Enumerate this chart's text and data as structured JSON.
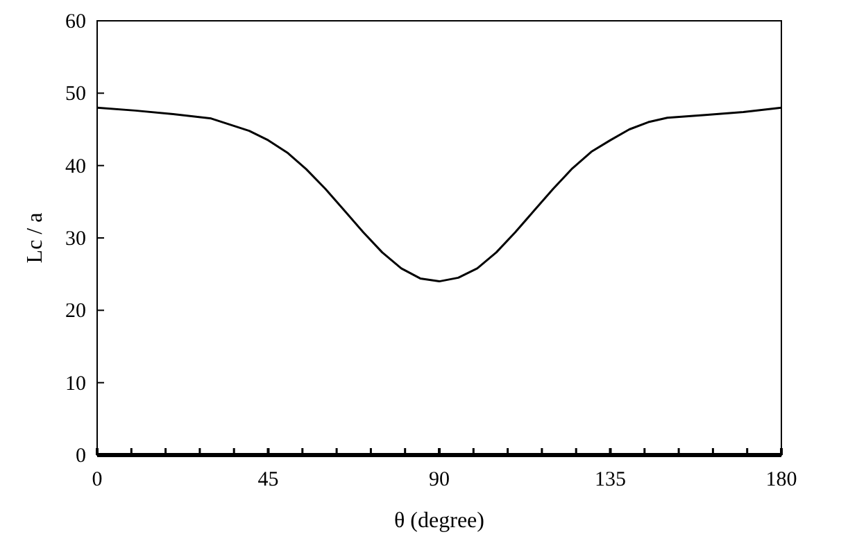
{
  "chart_data": {
    "type": "line",
    "xlabel": "θ (degree)",
    "ylabel": "Lc / a",
    "x": [
      0,
      10,
      20,
      30,
      40,
      45,
      50,
      55,
      60,
      65,
      70,
      75,
      80,
      85,
      90,
      95,
      100,
      105,
      110,
      115,
      120,
      125,
      130,
      135,
      140,
      145,
      150,
      160,
      170,
      180
    ],
    "series": [
      {
        "color": "#000000",
        "values": [
          48,
          47.6,
          47.1,
          46.5,
          44.8,
          43.5,
          41.8,
          39.5,
          36.8,
          33.8,
          30.8,
          28,
          25.8,
          24.4,
          24,
          24.5,
          25.8,
          28,
          30.8,
          33.8,
          36.8,
          39.6,
          41.9,
          43.5,
          45,
          46,
          46.6,
          47,
          47.4,
          48
        ]
      }
    ],
    "xlim": [
      0,
      180
    ],
    "ylim": [
      0,
      60
    ],
    "xticks": [
      0,
      {
        "value": 9,
        "label": null
      },
      {
        "value": 18,
        "label": null
      },
      {
        "value": 27,
        "label": null
      },
      {
        "value": 36,
        "label": null
      },
      45,
      {
        "value": 54,
        "label": null
      },
      {
        "value": 63,
        "label": null
      },
      {
        "value": 72,
        "label": null
      },
      {
        "value": 81,
        "label": null
      },
      90,
      {
        "value": 99,
        "label": null
      },
      {
        "value": 108,
        "label": null
      },
      {
        "value": 117,
        "label": null
      },
      {
        "value": 126,
        "label": null
      },
      135,
      {
        "value": 144,
        "label": null
      },
      {
        "value": 153,
        "label": null
      },
      {
        "value": 162,
        "label": null
      },
      {
        "value": 171,
        "label": null
      },
      180
    ],
    "yticks": [
      0,
      10,
      20,
      30,
      40,
      50,
      60
    ],
    "marker": "none",
    "line_style": "solid"
  }
}
